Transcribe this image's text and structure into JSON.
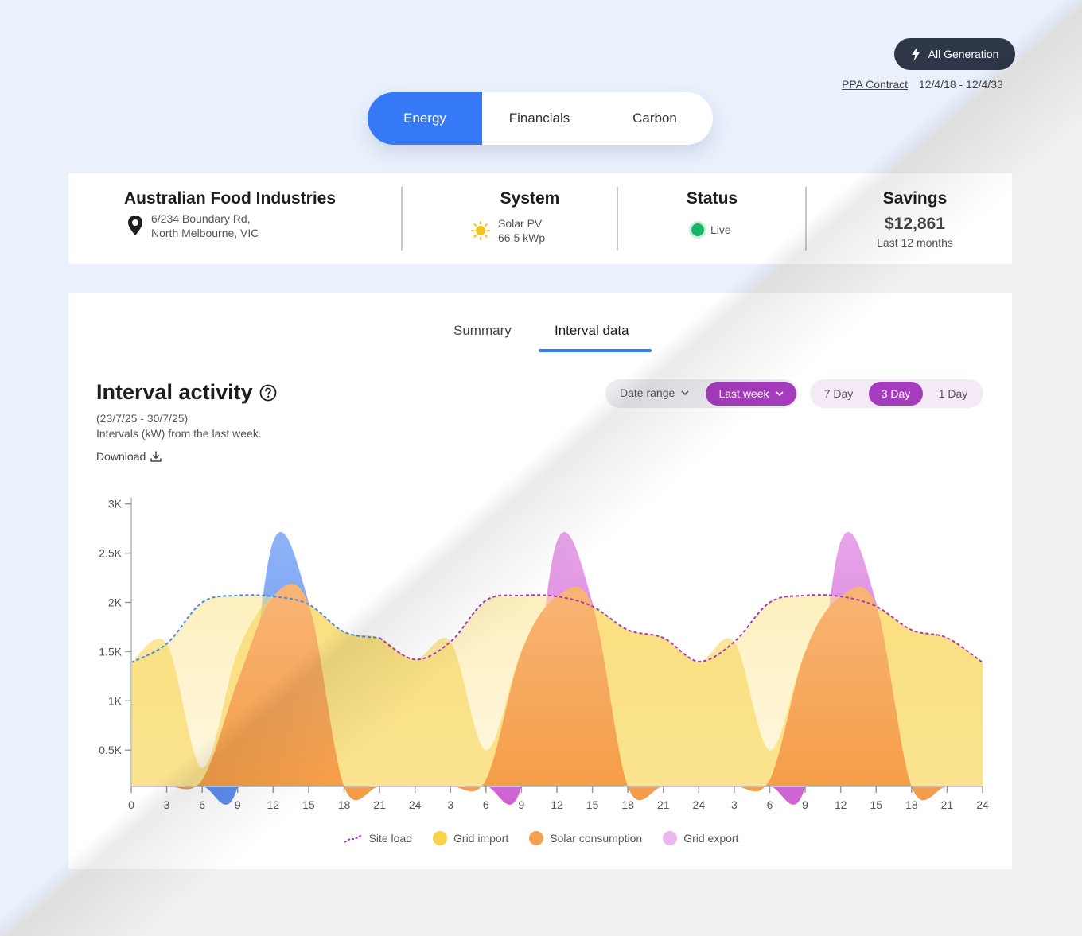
{
  "header": {
    "generation_button": "All Generation",
    "ppa_link": "PPA Contract",
    "ppa_dates": "12/4/18 - 12/4/33"
  },
  "main_tabs": [
    {
      "label": "Energy",
      "active": true
    },
    {
      "label": "Financials",
      "active": false
    },
    {
      "label": "Carbon",
      "active": false
    }
  ],
  "info": {
    "company": {
      "name": "Australian Food Industries",
      "address_line1": "6/234 Boundary Rd,",
      "address_line2": "North Melbourne, VIC"
    },
    "system": {
      "title": "System",
      "type": "Solar PV",
      "capacity": "66.5 kWp"
    },
    "status": {
      "title": "Status",
      "value": "Live",
      "color": "#19b56a"
    },
    "savings": {
      "title": "Savings",
      "value": "$12,861",
      "period": "Last 12 months"
    }
  },
  "sub_tabs": [
    {
      "label": "Summary",
      "active": false
    },
    {
      "label": "Interval data",
      "active": true
    }
  ],
  "interval": {
    "title": "Interval activity",
    "range": "(23/7/25 - 30/7/25)",
    "description": "Intervals (kW) from the last week.",
    "download_label": "Download",
    "date_range_label": "Date range",
    "date_range_value": "Last week",
    "day_options": [
      {
        "label": "7 Day",
        "active": false
      },
      {
        "label": "3 Day",
        "active": true
      },
      {
        "label": "1 Day",
        "active": false
      }
    ]
  },
  "colors": {
    "accent": "#3579f6",
    "purple": "#a53bbd",
    "site_load_day1": "#4c86e8",
    "grid_import": "#f8d24a",
    "solar_consumption": "#f5a150",
    "grid_export_day1": "#6d9bf2",
    "grid_export": "#d57ad8"
  },
  "chart_data": {
    "type": "area",
    "x": [
      0,
      3,
      6,
      9,
      12,
      15,
      18,
      21,
      24,
      27,
      30,
      33,
      36,
      39,
      42,
      45,
      48,
      51,
      54,
      57,
      60,
      63,
      66,
      69,
      72
    ],
    "x_tick_labels": [
      "0",
      "3",
      "6",
      "9",
      "12",
      "15",
      "18",
      "21",
      "24",
      "3",
      "6",
      "9",
      "12",
      "15",
      "18",
      "21",
      "24",
      "3",
      "6",
      "9",
      "12",
      "15",
      "18",
      "21",
      "24"
    ],
    "y_ticks": [
      {
        "value": 500,
        "label": "0.5K"
      },
      {
        "value": 1000,
        "label": "1K"
      },
      {
        "value": 1500,
        "label": "1.5K"
      },
      {
        "value": 2000,
        "label": "2K"
      },
      {
        "value": 2500,
        "label": "2.5K"
      },
      {
        "value": 3000,
        "label": "3K"
      }
    ],
    "ylim": [
      130,
      3030
    ],
    "xlim": [
      0,
      72
    ],
    "series": [
      {
        "name": "Site load",
        "values": [
          1390,
          1580,
          2000,
          2070,
          2060,
          1980,
          1700,
          1640,
          1420,
          1600,
          2020,
          2070,
          2060,
          1960,
          1720,
          1640,
          1400,
          1600,
          2000,
          2070,
          2060,
          1960,
          1720,
          1640,
          1390
        ]
      },
      {
        "name": "Grid import",
        "values": [
          1390,
          1580,
          320,
          1500,
          2060,
          1980,
          1700,
          1640,
          1420,
          1600,
          500,
          1500,
          2060,
          1960,
          1720,
          1640,
          1400,
          1600,
          500,
          1500,
          2060,
          1960,
          1720,
          1640,
          1390
        ]
      },
      {
        "name": "Solar consumption",
        "values": [
          0,
          0,
          200,
          1200,
          2060,
          1980,
          100,
          0,
          0,
          0,
          200,
          1500,
          2060,
          1960,
          100,
          0,
          0,
          0,
          200,
          1500,
          2060,
          1960,
          100,
          0,
          0
        ]
      },
      {
        "name": "Grid export",
        "values": [
          0,
          0,
          0,
          0,
          2620,
          2000,
          0,
          0,
          0,
          0,
          0,
          0,
          2620,
          2000,
          0,
          0,
          0,
          0,
          0,
          0,
          2620,
          2000,
          0,
          0,
          0
        ]
      }
    ]
  }
}
